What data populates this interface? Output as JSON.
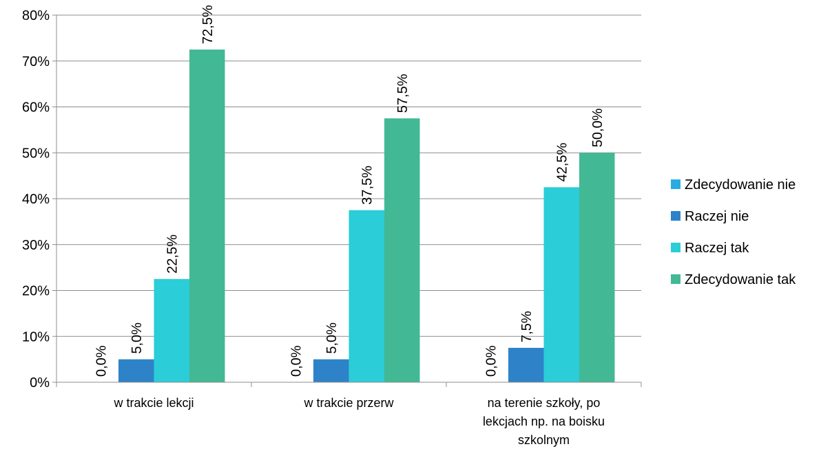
{
  "chart_data": {
    "type": "bar",
    "title": "",
    "xlabel": "",
    "ylabel": "",
    "ylim": [
      0,
      80
    ],
    "ytick_step": 10,
    "ytick_labels": [
      "0%",
      "10%",
      "20%",
      "30%",
      "40%",
      "50%",
      "60%",
      "70%",
      "80%"
    ],
    "grid": true,
    "legend_position": "right",
    "categories": [
      [
        "w trakcie lekcji"
      ],
      [
        "w trakcie przerw"
      ],
      [
        "na terenie szkoły, po",
        "lekcjach np. na boisku",
        "szkolnym"
      ]
    ],
    "series": [
      {
        "name": "Zdecydowanie nie",
        "color": "#29abe2",
        "values": [
          0.0,
          0.0,
          0.0
        ],
        "labels": [
          "0,0%",
          "0,0%",
          "0,0%"
        ]
      },
      {
        "name": "Raczej nie",
        "color": "#2e83c8",
        "values": [
          5.0,
          5.0,
          7.5
        ],
        "labels": [
          "5,0%",
          "5,0%",
          "7,5%"
        ]
      },
      {
        "name": "Raczej tak",
        "color": "#2bcdd8",
        "values": [
          22.5,
          37.5,
          42.5
        ],
        "labels": [
          "22,5%",
          "37,5%",
          "42,5%"
        ]
      },
      {
        "name": "Zdecydowanie tak",
        "color": "#42b994",
        "values": [
          72.5,
          57.5,
          50.0
        ],
        "labels": [
          "72,5%",
          "57,5%",
          "50,0%"
        ]
      }
    ]
  }
}
